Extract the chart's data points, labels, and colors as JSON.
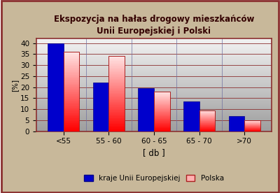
{
  "title_line1": "Ekspozycja na hałas drogowy mieszkańców",
  "title_line2": "Unii Europejskiej i Polski",
  "categories": [
    "<55",
    "55 - 60",
    "60 - 65",
    "65 - 70",
    ">70"
  ],
  "eu_values": [
    40,
    22,
    19.5,
    13.5,
    7
  ],
  "pl_values": [
    36,
    34,
    18,
    9.5,
    5
  ],
  "ylabel": "[%]",
  "xlabel": "[ db ]",
  "ylim": [
    0,
    42
  ],
  "yticks": [
    0,
    5,
    10,
    15,
    20,
    25,
    30,
    35,
    40
  ],
  "legend_eu": "kraje Unii Europejskiej",
  "legend_pl": "Polska",
  "eu_color": "#0000CC",
  "bg_color": "#C8B89A",
  "plot_bg_top": "#F0F0F0",
  "plot_bg_bottom": "#909090",
  "grid_color": "#8B3030",
  "border_color": "#8B3030",
  "title_color": "#330000",
  "tick_fontsize": 7.5,
  "label_fontsize": 8.5
}
